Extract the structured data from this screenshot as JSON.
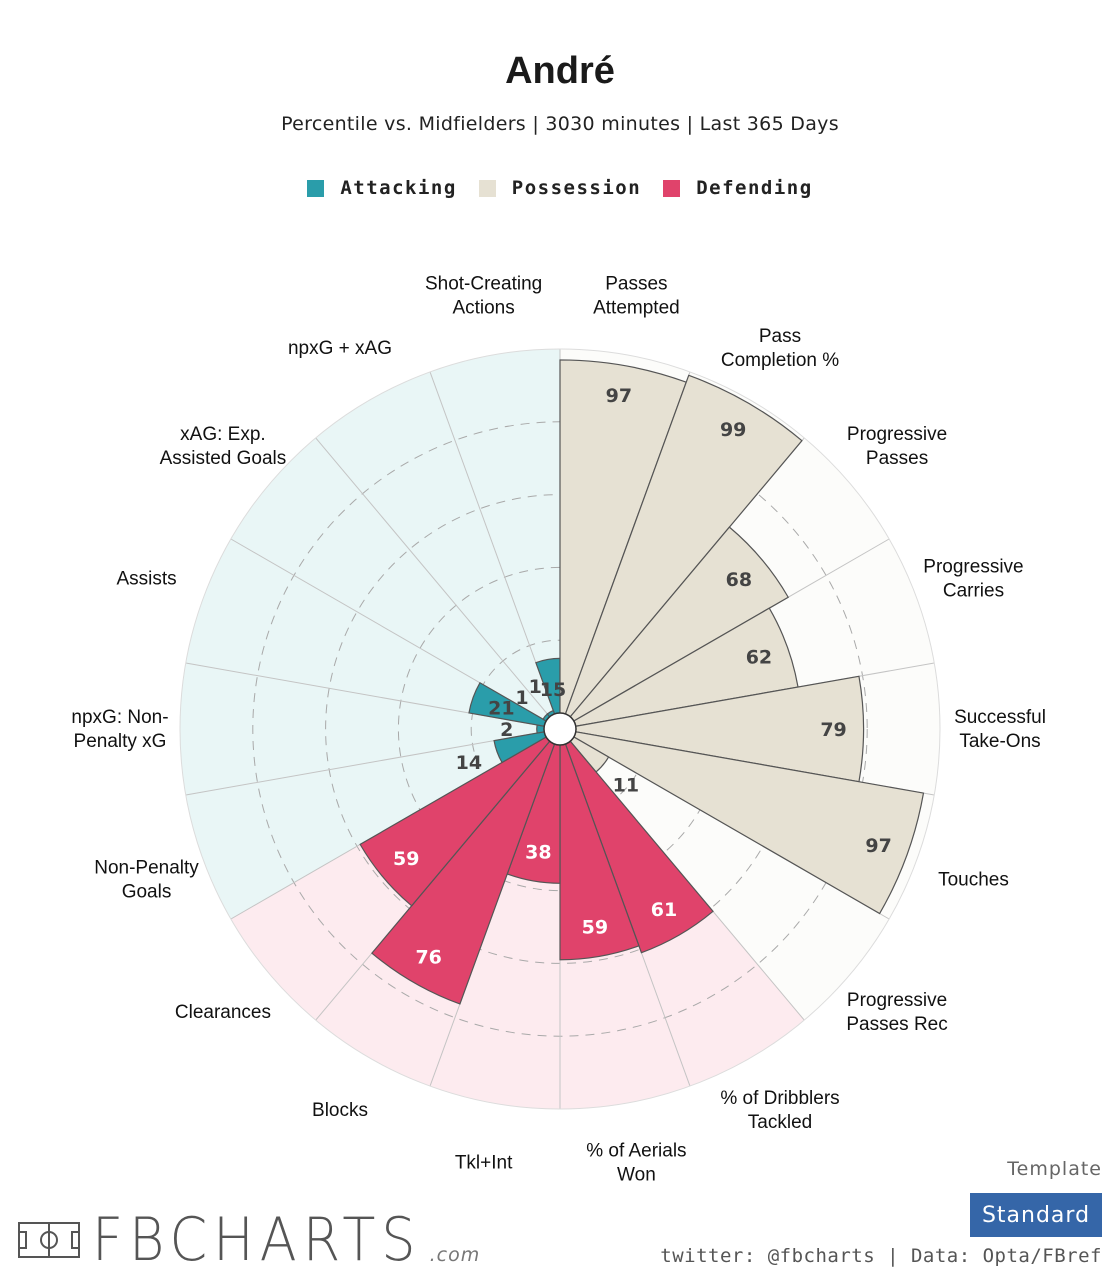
{
  "header": {
    "title": "André",
    "subtitle": "Percentile vs. Midfielders | 3030 minutes | Last 365 Days"
  },
  "legend": [
    {
      "label": "Attacking",
      "color": "#2a9daa"
    },
    {
      "label": "Possession",
      "color": "#e6e1d3"
    },
    {
      "label": "Defending",
      "color": "#e0436b"
    }
  ],
  "chart_data": {
    "type": "polar-bar",
    "range": [
      0,
      100
    ],
    "gridlines": [
      20,
      40,
      60,
      80
    ],
    "categories": [
      {
        "label": "Shot-Creating\nActions",
        "value": 15,
        "group": "Attacking"
      },
      {
        "label": "Passes\nAttempted",
        "value": 97,
        "group": "Possession"
      },
      {
        "label": "Pass\nCompletion %",
        "value": 99,
        "group": "Possession"
      },
      {
        "label": "Progressive\nPasses",
        "value": 68,
        "group": "Possession"
      },
      {
        "label": "Progressive\nCarries",
        "value": 62,
        "group": "Possession"
      },
      {
        "label": "Successful\nTake-Ons",
        "value": 79,
        "group": "Possession"
      },
      {
        "label": "Touches",
        "value": 97,
        "group": "Possession"
      },
      {
        "label": "Progressive\nPasses Rec",
        "value": 11,
        "group": "Possession"
      },
      {
        "label": "% of Dribblers\nTackled",
        "value": 61,
        "group": "Defending"
      },
      {
        "label": "% of Aerials\nWon",
        "value": 59,
        "group": "Defending"
      },
      {
        "label": "Tkl+Int",
        "value": 38,
        "group": "Defending"
      },
      {
        "label": "Blocks",
        "value": 76,
        "group": "Defending"
      },
      {
        "label": "Clearances",
        "value": 59,
        "group": "Defending"
      },
      {
        "label": "Non-Penalty\nGoals",
        "value": 14,
        "group": "Attacking"
      },
      {
        "label": "npxG: Non-\nPenalty xG",
        "value": 2,
        "group": "Attacking"
      },
      {
        "label": "Assists",
        "value": 21,
        "group": "Attacking"
      },
      {
        "label": "xAG: Exp.\nAssisted Goals",
        "value": 1,
        "group": "Attacking"
      },
      {
        "label": "npxG + xAG",
        "value": 1,
        "group": "Attacking"
      }
    ],
    "colors": {
      "Attacking": {
        "bar": "#2a9daa",
        "bg": "#e9f6f6",
        "value_text": "#444444"
      },
      "Possession": {
        "bar": "#e6e1d3",
        "bg": "#fcfcfa",
        "value_text": "#444444"
      },
      "Defending": {
        "bar": "#e0436b",
        "bg": "#fdebef",
        "value_text": "#ffffff"
      }
    }
  },
  "footer": {
    "brand": "FBCHARTS",
    "brand_suffix": ".com",
    "template_label": "Template",
    "template_button": "Standard",
    "credits": "twitter: @fbcharts | Data: Opta/FBref"
  }
}
